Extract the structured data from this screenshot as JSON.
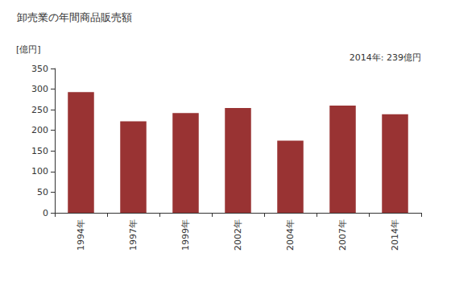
{
  "chart_data": {
    "type": "bar",
    "title": "卸売業の年間商品販売額",
    "y_label": "[億円]",
    "annotation": "2014年: 239億円",
    "categories": [
      "1994年",
      "1997年",
      "1999年",
      "2002年",
      "2004年",
      "2007年",
      "2014年"
    ],
    "values": [
      293,
      222,
      242,
      254,
      175,
      260,
      239
    ],
    "color": "#993333",
    "ylim": [
      0,
      350
    ],
    "yticks": [
      0,
      50,
      100,
      150,
      200,
      250,
      300,
      350
    ],
    "grid": false
  }
}
